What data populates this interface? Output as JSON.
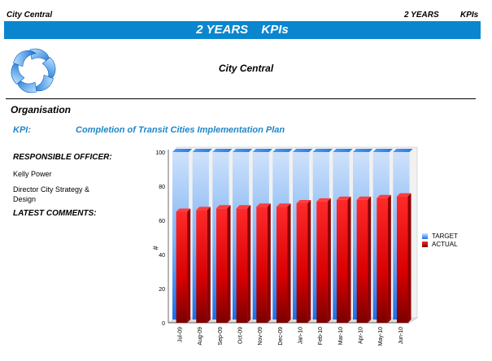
{
  "header": {
    "left": "City Central",
    "right_a": "2 YEARS",
    "right_b": "KPIs"
  },
  "banner": {
    "part1": "2 YEARS",
    "part2": "KPIs"
  },
  "subtitle": "City Central",
  "section": "Organisation",
  "kpi": {
    "label": "KPI:",
    "value": "Completion of Transit Cities Implementation Plan"
  },
  "officer": {
    "label": "RESPONSIBLE OFFICER:",
    "name": "Kelly Power",
    "role": "Director City Strategy & Design"
  },
  "comments_label": "LATEST COMMENTS:",
  "colors": {
    "banner": "#0a86cf",
    "target_top": "#cfe2fb",
    "target_bottom": "#1a6fe8",
    "actual_top": "#ff2a2a",
    "actual_bottom": "#7a0000"
  },
  "chart_data": {
    "type": "bar",
    "categories": [
      "Jul-09",
      "Aug-09",
      "Sep-09",
      "Oct-09",
      "Nov-09",
      "Dec-09",
      "Jan-10",
      "Feb-10",
      "Mar-10",
      "Apr-10",
      "May-10",
      "Jun-10"
    ],
    "series": [
      {
        "name": "TARGET",
        "values": [
          100,
          100,
          100,
          100,
          100,
          100,
          100,
          100,
          100,
          100,
          100,
          100
        ]
      },
      {
        "name": "ACTUAL",
        "values": [
          65,
          66,
          67,
          67,
          68,
          68,
          70,
          71,
          72,
          72,
          73,
          74
        ]
      }
    ],
    "ylabel": "#",
    "ylim": [
      0,
      100
    ],
    "yticks": [
      0,
      20,
      40,
      60,
      80,
      100
    ],
    "grid": false,
    "legend": "right"
  }
}
